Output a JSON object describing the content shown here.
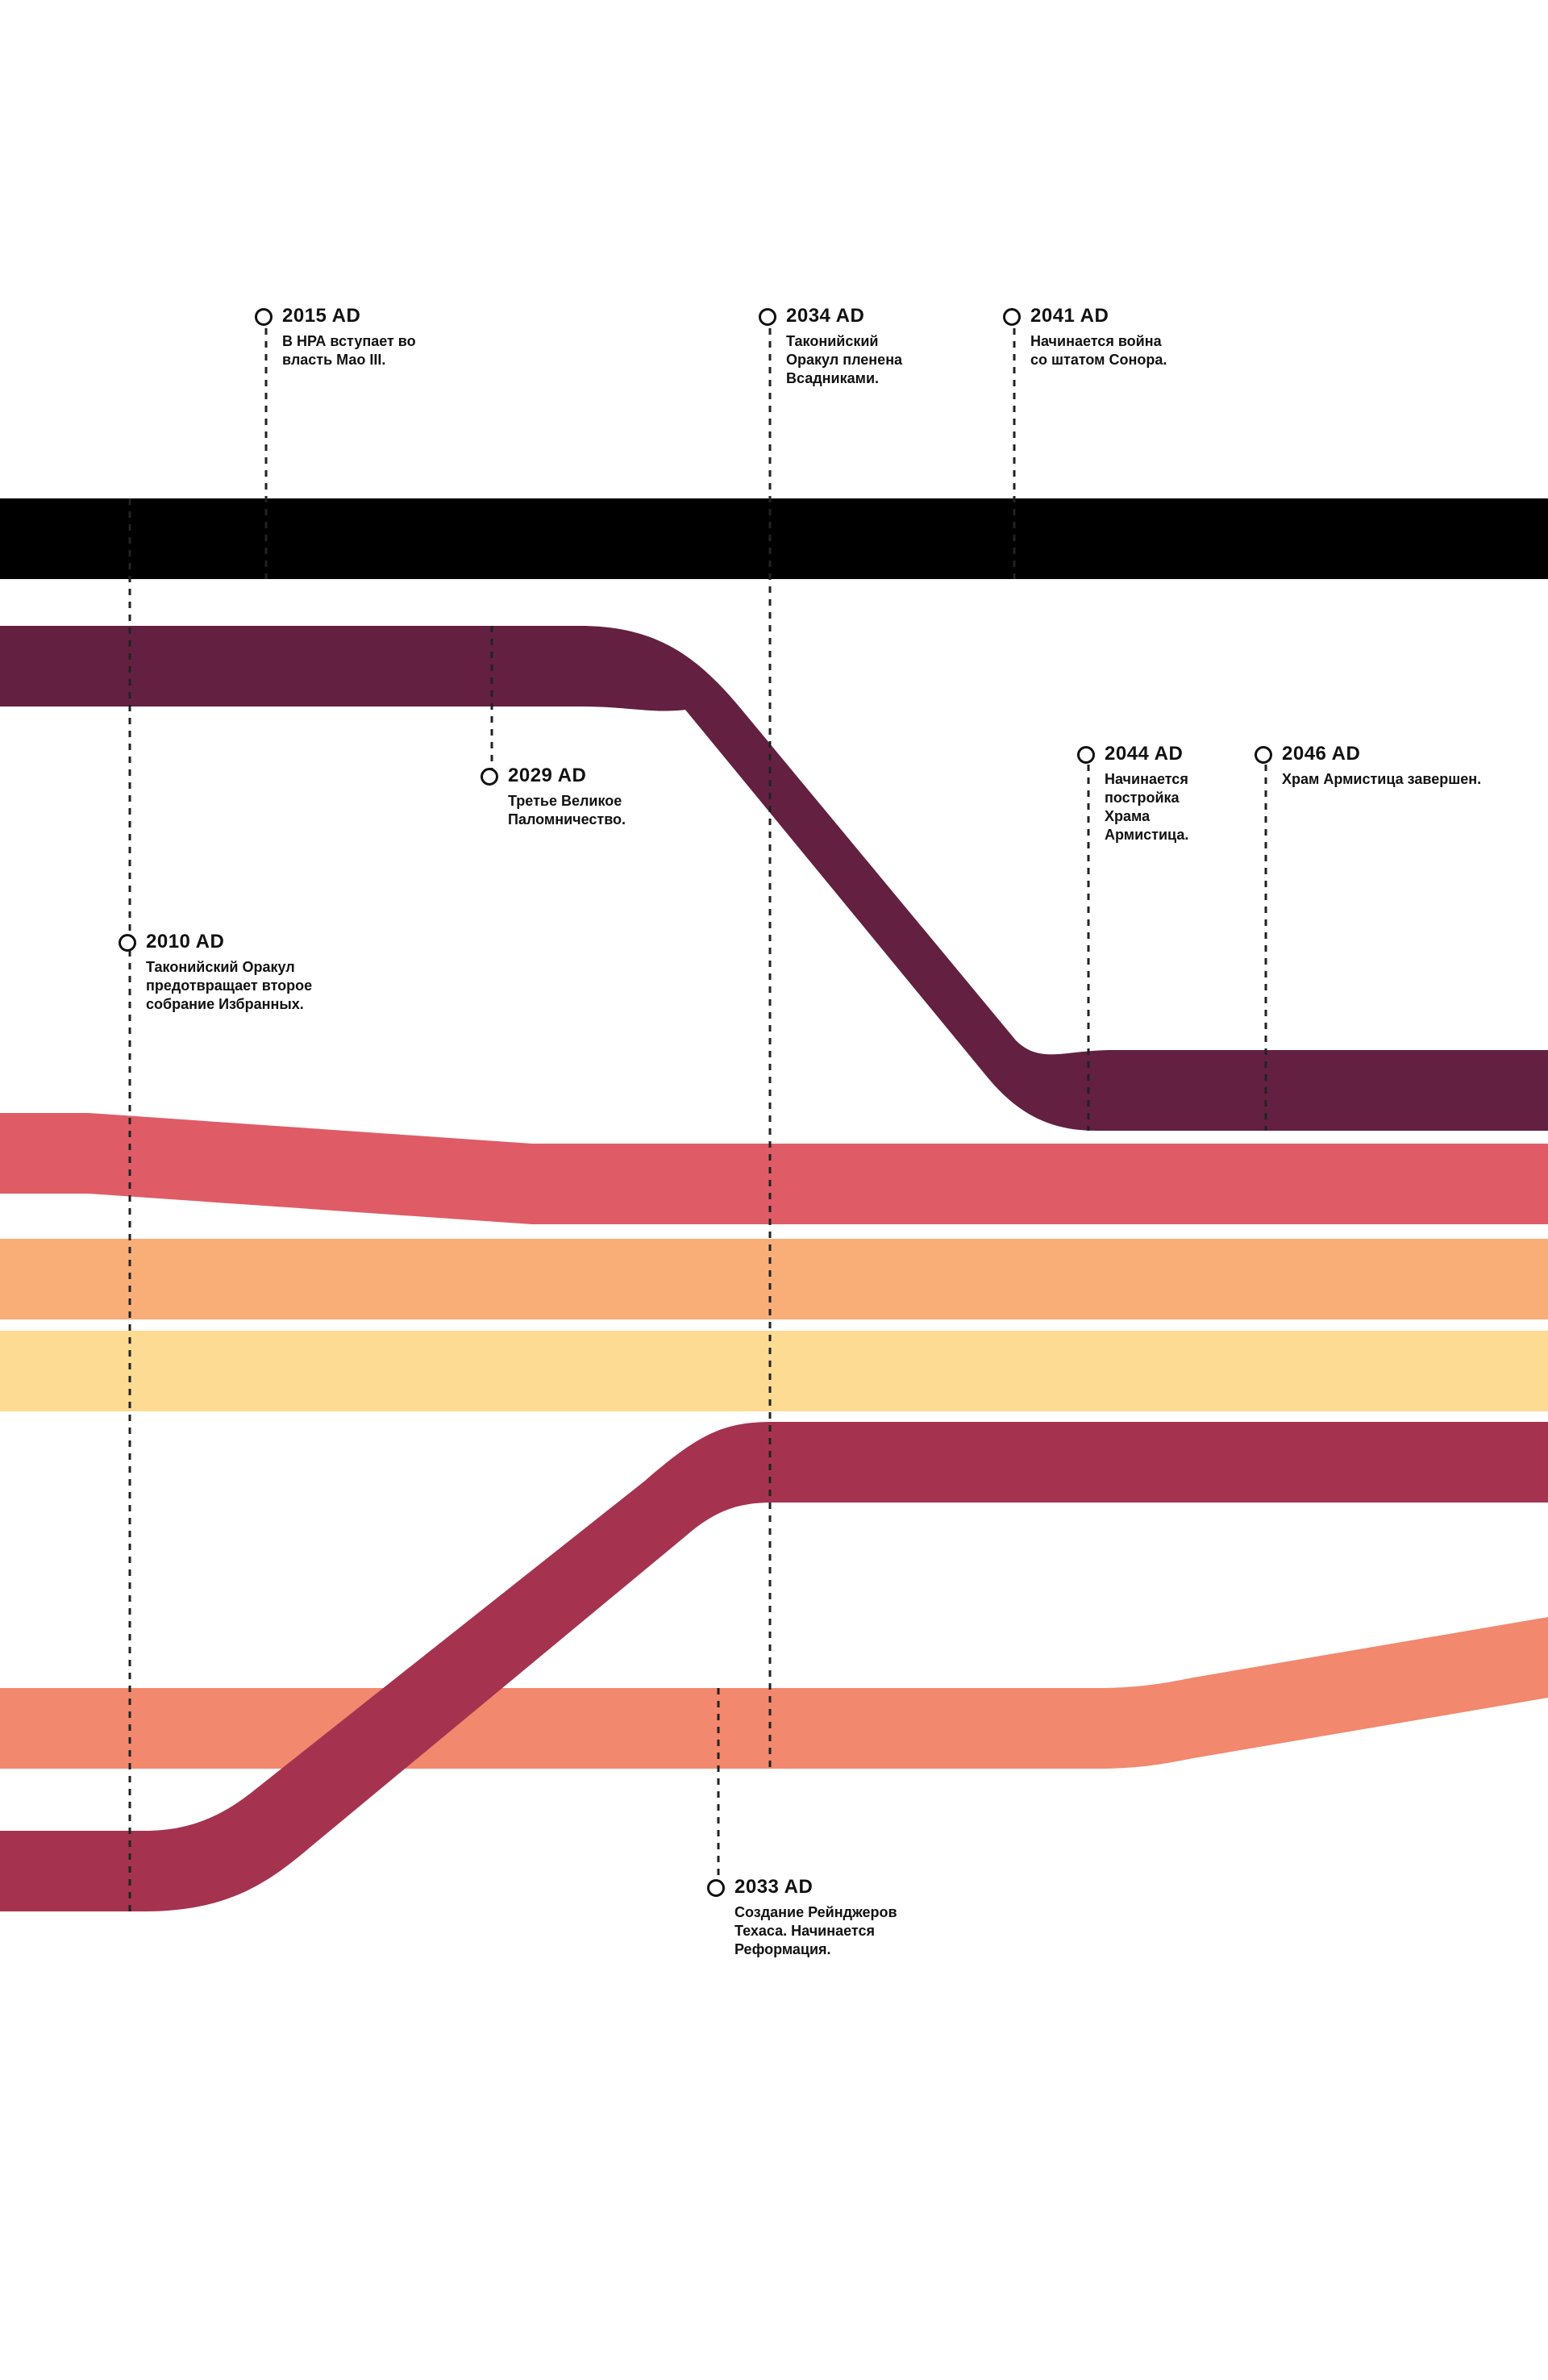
{
  "stream_colors": [
    "#000000",
    "#632041",
    "#df5c67",
    "#f9ae78",
    "#fedb92",
    "#a5334f",
    "#f2886d"
  ],
  "events": [
    {
      "year": "2015 AD",
      "text": "В НРА вступает во\nвласть Мао III."
    },
    {
      "year": "2034 AD",
      "text": "Таконийский\nОракул пленена\nВсадниками."
    },
    {
      "year": "2041 AD",
      "text": "Начинается война\nсо штатом Сонора."
    },
    {
      "year": "2029 AD",
      "text": "Третье Великое\nПаломничество."
    },
    {
      "year": "2044 AD",
      "text": "Начинается\nпостройка\nХрама\nАрмистица."
    },
    {
      "year": "2046 AD",
      "text": "Храм Армистица завершен."
    },
    {
      "year": "2010 AD",
      "text": "Таконийский Оракул\nпредотвращает второе\nсобрание Избранных."
    },
    {
      "year": "2033 AD",
      "text": "Создание Рейнджеров\nТехаса. Начинается\nРеформация."
    }
  ]
}
